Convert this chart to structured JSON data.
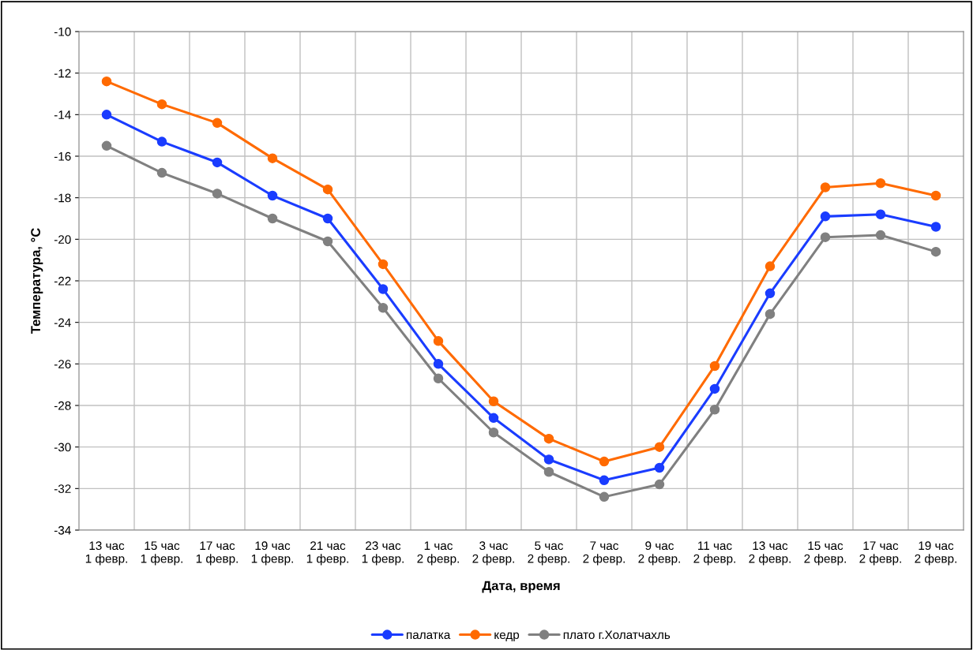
{
  "chart_data": {
    "type": "line",
    "xlabel": "Дата, время",
    "ylabel": "Температура, °С",
    "categories": [
      "13 час\n1 февр.",
      "15 час\n1 февр.",
      "17 час\n1 февр.",
      "19 час\n1 февр.",
      "21 час\n1 февр.",
      "23 час\n1 февр.",
      "1 час\n2 февр.",
      "3 час\n2 февр.",
      "5 час\n2 февр.",
      "7 час\n2 февр.",
      "9 час\n2 февр.",
      "11 час\n2 февр.",
      "13 час\n2 февр.",
      "15 час\n2 февр.",
      "17 час\n2 февр.",
      "19 час\n2 февр."
    ],
    "series": [
      {
        "name": "палатка",
        "color": "#1a3cff",
        "values": [
          -14.0,
          -15.3,
          -16.3,
          -17.9,
          -19.0,
          -22.4,
          -26.0,
          -28.6,
          -30.6,
          -31.6,
          -31.0,
          -27.2,
          -22.6,
          -18.9,
          -18.8,
          -19.4
        ]
      },
      {
        "name": "кедр",
        "color": "#ff6a00",
        "values": [
          -12.4,
          -13.5,
          -14.4,
          -16.1,
          -17.6,
          -21.2,
          -24.9,
          -27.8,
          -29.6,
          -30.7,
          -30.0,
          -26.1,
          -21.3,
          -17.5,
          -17.3,
          -17.9
        ]
      },
      {
        "name": "плато г.Холатчахль",
        "color": "#808080",
        "values": [
          -15.5,
          -16.8,
          -17.8,
          -19.0,
          -20.1,
          -23.3,
          -26.7,
          -29.3,
          -31.2,
          -32.4,
          -31.8,
          -28.2,
          -23.6,
          -19.9,
          -19.8,
          -20.6
        ]
      }
    ],
    "ylim": [
      -34,
      -10
    ],
    "yticks": [
      -34,
      -32,
      -30,
      -28,
      -26,
      -24,
      -22,
      -20,
      -18,
      -16,
      -14,
      -12,
      -10
    ],
    "grid": true,
    "legend": "bottom",
    "marker": "circle",
    "line_style": "solid"
  }
}
